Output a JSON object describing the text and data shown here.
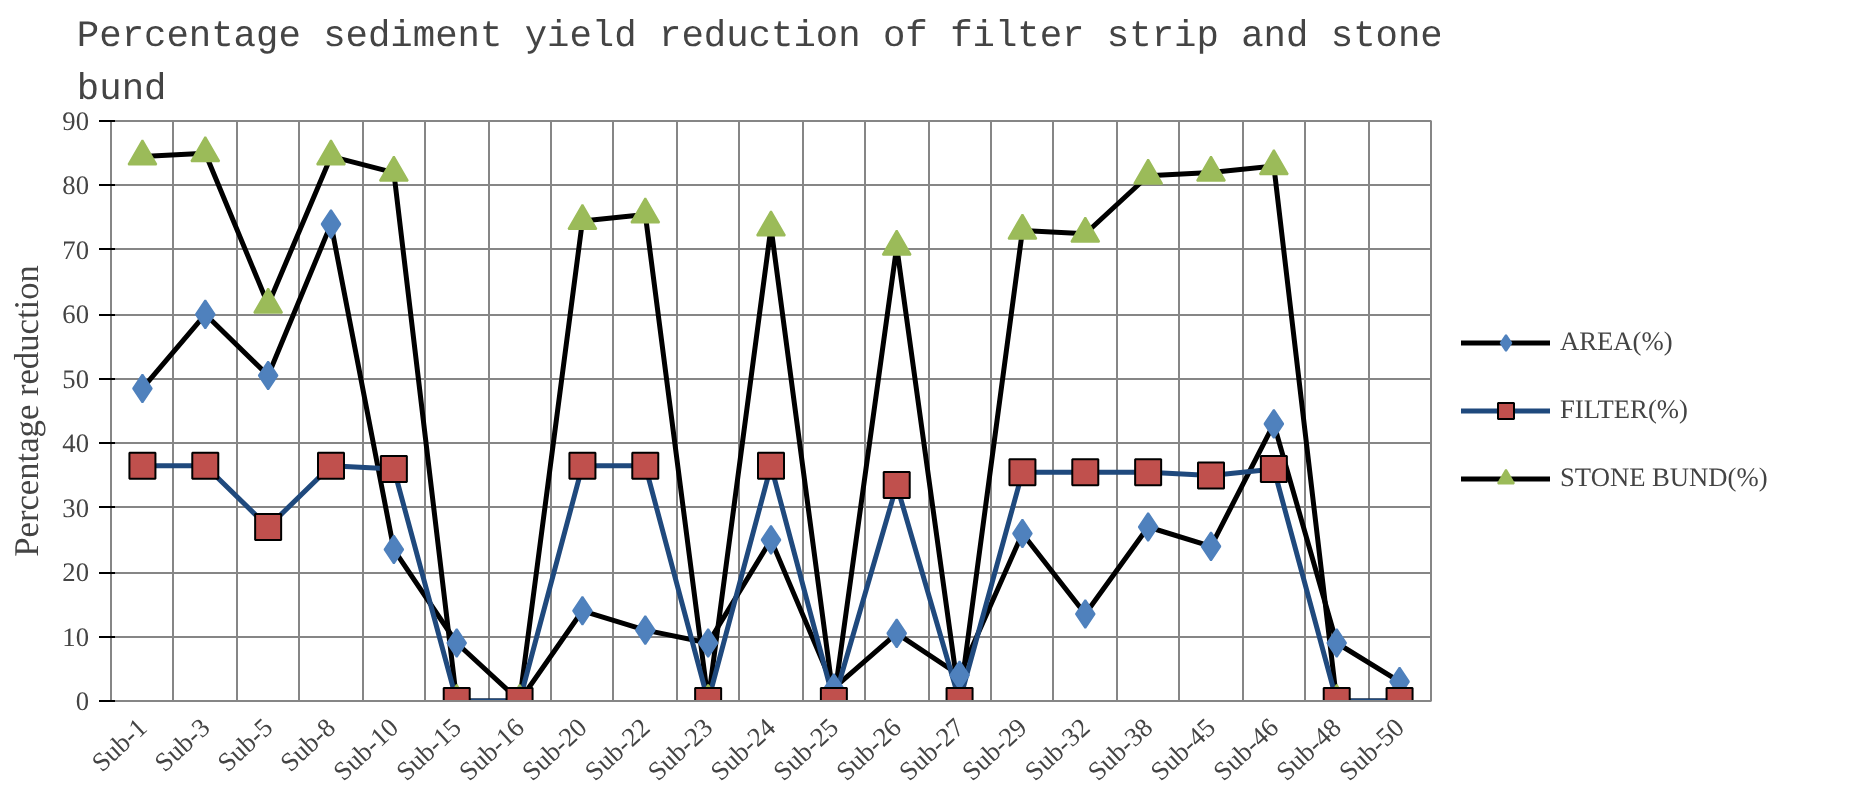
{
  "chart_data": {
    "type": "line",
    "title": "Percentage sediment yield reduction of  filter strip and stone bund",
    "ylabel": "Percentage reduction",
    "categories": [
      "Sub-1",
      "Sub-3",
      "Sub-5",
      "Sub-8",
      "Sub-10",
      "Sub-15",
      "Sub-16",
      "Sub-20",
      "Sub-22",
      "Sub-23",
      "Sub-24",
      "Sub-25",
      "Sub-26",
      "Sub-27",
      "Sub-29",
      "Sub-32",
      "Sub-38",
      "Sub-45",
      "Sub-46",
      "Sub-48",
      "Sub-50"
    ],
    "ylim": [
      0,
      90
    ],
    "yticks": [
      0,
      10,
      20,
      30,
      40,
      50,
      60,
      70,
      80,
      90
    ],
    "grid": true,
    "legend": "right",
    "series": [
      {
        "name": "AREA(%)",
        "color": "#4f81bd",
        "marker": "diamond",
        "values": [
          48.5,
          60,
          50.5,
          74,
          23.5,
          9,
          0,
          14,
          11,
          9,
          25,
          2,
          10.5,
          4,
          26,
          13.5,
          27,
          24,
          43,
          9,
          3
        ]
      },
      {
        "name": "FILTER(%)",
        "color": "#c0504d",
        "marker": "square",
        "values": [
          36.5,
          36.5,
          27,
          36.5,
          36,
          0,
          0,
          36.5,
          36.5,
          0,
          36.5,
          0,
          33.5,
          0,
          35.5,
          35.5,
          35.5,
          35,
          36,
          0,
          0
        ]
      },
      {
        "name": "STONE BUND(%)",
        "color": "#9bbb59",
        "marker": "triangle",
        "values": [
          84.5,
          85,
          61.5,
          84.5,
          82,
          0,
          0,
          74.5,
          75.5,
          0,
          73.5,
          0,
          70.5,
          0,
          73,
          72.5,
          81.5,
          82,
          83,
          0,
          0
        ]
      }
    ]
  }
}
